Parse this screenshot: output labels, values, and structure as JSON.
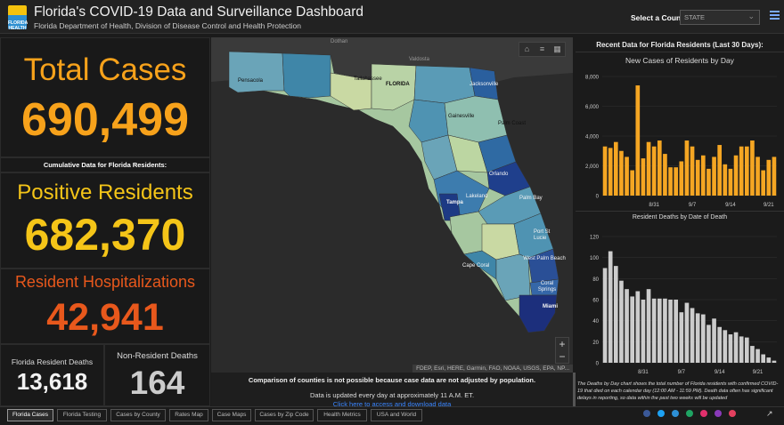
{
  "header": {
    "logo_text": "FLORIDA HEALTH",
    "title": "Florida's COVID-19 Data and Surveillance Dashboard",
    "subtitle": "Florida Department of Health, Division of Disease Control and Health Protection",
    "select_label": "Select a County",
    "select_value": "STATE"
  },
  "stats": {
    "total_cases_label": "Total Cases",
    "total_cases_value": "690,499",
    "cumulative_label": "Cumulative Data for Florida Residents:",
    "positive_label": "Positive Residents",
    "positive_value": "682,370",
    "hosp_label": "Resident Hospitalizations",
    "hosp_value": "42,941",
    "fl_deaths_label": "Florida Resident Deaths",
    "fl_deaths_value": "13,618",
    "nonres_deaths_label": "Non-Resident Deaths",
    "nonres_deaths_value": "164"
  },
  "map": {
    "labels": {
      "dothan": "Dothan",
      "valdosta": "Valdosta",
      "pensacola": "Pensacola",
      "tallahassee": "Tallahassee",
      "jacksonville": "Jacksonville",
      "florida": "FLORIDA",
      "gainesville": "Gainesville",
      "palm_coast": "Palm Coast",
      "orlando": "Orlando",
      "lakeland": "Lakeland",
      "tampa": "Tampa",
      "palm_bay": "Palm Bay",
      "port_st_lucie": "Port St Lucie",
      "cape_coral": "Cape Coral",
      "west_palm_beach": "West Palm Beach",
      "coral_springs": "Coral Springs",
      "miami": "Miami"
    },
    "attribution": "FDEP, Esri, HERE, Garmin, FAO, NOAA, USGS, EPA, NP...",
    "footer_note": "Comparison of counties is not possible because case data are not adjusted by population.",
    "update_note": "Data is updated every day at approximately 11 A.M. ET.",
    "download_link": "Click here to access and download data"
  },
  "right": {
    "title": "Recent Data for Florida Residents (Last 30 Days):",
    "note": "The Deaths by Day chart shows the total number of Florida residents with confirmed COVID-19 that died on each calendar day (12:00 AM - 11:59 PM). Death data often has significant delays in reporting, so data within the past two weeks will be updated"
  },
  "chart_data": [
    {
      "type": "bar",
      "title": "New Cases of Residents by Day",
      "color": "#f5a623",
      "ylim": [
        0,
        8000
      ],
      "yticks": [
        "0",
        "2,000",
        "4,000",
        "6,000",
        "8,000"
      ],
      "ytick_values": [
        0,
        2000,
        4000,
        6000,
        8000
      ],
      "xtick_labels": [
        {
          "index": 9,
          "label": "8/31"
        },
        {
          "index": 16,
          "label": "9/7"
        },
        {
          "index": 23,
          "label": "9/14"
        },
        {
          "index": 30,
          "label": "9/21"
        }
      ],
      "values": [
        3300,
        3200,
        3600,
        3000,
        2600,
        1700,
        7400,
        2500,
        3600,
        3300,
        3700,
        2800,
        1900,
        1900,
        2300,
        3700,
        3300,
        2400,
        2700,
        1800,
        2600,
        3400,
        2100,
        1800,
        2700,
        3300,
        3300,
        3700,
        2600,
        1700,
        2400,
        2600
      ]
    },
    {
      "type": "bar",
      "title": "Resident Deaths by Date of Death",
      "color": "#cccccc",
      "ylim": [
        0,
        120
      ],
      "yticks": [
        "0",
        "20",
        "40",
        "60",
        "80",
        "100",
        "120"
      ],
      "ytick_values": [
        0,
        20,
        40,
        60,
        80,
        100,
        120
      ],
      "xtick_labels": [
        {
          "index": 7,
          "label": "8/31"
        },
        {
          "index": 14,
          "label": "9/7"
        },
        {
          "index": 21,
          "label": "9/14"
        },
        {
          "index": 28,
          "label": "9/21"
        }
      ],
      "values": [
        90,
        106,
        92,
        78,
        70,
        63,
        68,
        60,
        70,
        61,
        61,
        61,
        60,
        60,
        48,
        57,
        52,
        47,
        46,
        36,
        42,
        34,
        31,
        27,
        29,
        25,
        24,
        16,
        13,
        8,
        5,
        2
      ]
    }
  ],
  "tabs": [
    "Florida Cases",
    "Florida Testing",
    "Cases by County",
    "Rates Map",
    "Case Maps",
    "Cases by Zip Code",
    "Health Metrics",
    "USA and World"
  ],
  "colors": {
    "orange": "#f7a21b",
    "yellow": "#f5c518",
    "red_orange": "#e8581c",
    "white": "#f2f2f2"
  }
}
